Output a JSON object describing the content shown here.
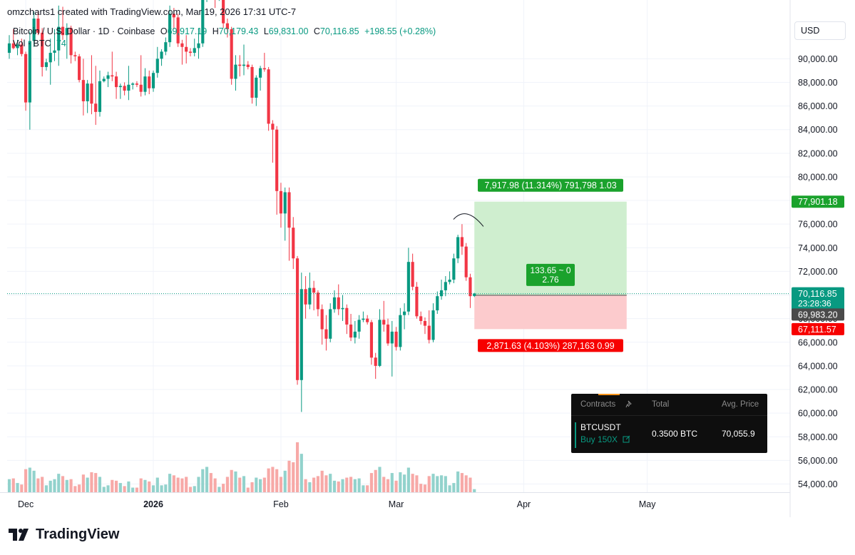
{
  "header": {
    "created_by": "omzcharts1 created with TradingView.com, Mar 19, 2026 17:31 UTC-7"
  },
  "legend": {
    "symbol": "Bitcoin / U.S. Dollar · 1D · Coinbase",
    "o_label": "O",
    "o_value": "69,917.19",
    "h_label": "H",
    "h_value": "70,179.43",
    "l_label": "L",
    "l_value": "69,831.00",
    "c_label": "C",
    "c_value": "70,116.85",
    "change": "+198.55 (+0.28%)",
    "vol_label": "Vol · BTC",
    "vol_value": "74"
  },
  "currency_button": "USD",
  "colors": {
    "up": "#089981",
    "down": "#f23645",
    "vol_up": "#92d2cc",
    "vol_down": "#f7a9a7",
    "profit_zone": "#cfeecf",
    "loss_zone": "#fccbcd",
    "profit_label": "#1aa22c",
    "loss_label": "#f70000",
    "grid": "#f0f3fa"
  },
  "chart_data": {
    "type": "candlestick",
    "title": "Bitcoin / U.S. Dollar · 1D · Coinbase",
    "ylim": [
      53000,
      95000
    ],
    "y_ticks": [
      54000,
      56000,
      58000,
      60000,
      62000,
      64000,
      66000,
      68000,
      70000,
      72000,
      74000,
      76000,
      78000,
      80000,
      82000,
      84000,
      86000,
      88000,
      90000
    ],
    "y_tick_labels": [
      "54,000.00",
      "56,000.00",
      "58,000.00",
      "60,000.00",
      "62,000.00",
      "64,000.00",
      "66,000.00",
      "68,000.00",
      "70,000.00",
      "72,000.00",
      "74,000.00",
      "76,000.00",
      "78,000.00",
      "80,000.00",
      "82,000.00",
      "84,000.00",
      "86,000.00",
      "88,000.00",
      "90,000.00"
    ],
    "x_labels": [
      {
        "label": "Dec",
        "date": "2025-12-01"
      },
      {
        "label": "2026",
        "date": "2026-01-01",
        "bold": true
      },
      {
        "label": "Feb",
        "date": "2026-02-01"
      },
      {
        "label": "Mar",
        "date": "2026-03-01"
      },
      {
        "label": "Apr",
        "date": "2026-04-01"
      },
      {
        "label": "May",
        "date": "2026-05-01"
      }
    ],
    "x_range": [
      "2025-11-27",
      "2026-05-17"
    ],
    "last_price": "70,116.85",
    "countdown": "23:28:36",
    "bid_price": "69,983.20",
    "position": {
      "entry": 69983.2,
      "target": 77901.18,
      "stop": 67111.57,
      "start_date": "2026-03-20",
      "end_date": "2026-04-26",
      "target_label": "77,901.18",
      "stop_label": "67,111.57",
      "profit_text": "7,917.98 (11.314%) 791,798 1.03",
      "loss_text": "2,871.63 (4.103%) 287,163 0.99",
      "center_line1": "133.65 ~ 0",
      "center_line2": "2.76"
    },
    "candles": [
      {
        "d": "2025-11-27",
        "o": 90500,
        "h": 92000,
        "l": 90000,
        "c": 91300,
        "v": 17
      },
      {
        "d": "2025-11-28",
        "o": 91300,
        "h": 92500,
        "l": 90800,
        "c": 90900,
        "v": 18
      },
      {
        "d": "2025-11-29",
        "o": 90900,
        "h": 91600,
        "l": 90300,
        "c": 91200,
        "v": 12
      },
      {
        "d": "2025-11-30",
        "o": 91200,
        "h": 91700,
        "l": 90200,
        "c": 90400,
        "v": 10
      },
      {
        "d": "2025-12-01",
        "o": 90400,
        "h": 90600,
        "l": 85600,
        "c": 86300,
        "v": 30
      },
      {
        "d": "2025-12-02",
        "o": 86300,
        "h": 92300,
        "l": 84000,
        "c": 91500,
        "v": 32
      },
      {
        "d": "2025-12-03",
        "o": 91500,
        "h": 94000,
        "l": 91000,
        "c": 93400,
        "v": 28
      },
      {
        "d": "2025-12-04",
        "o": 93400,
        "h": 94000,
        "l": 92000,
        "c": 92200,
        "v": 18
      },
      {
        "d": "2025-12-05",
        "o": 92200,
        "h": 92600,
        "l": 88500,
        "c": 89300,
        "v": 20
      },
      {
        "d": "2025-12-06",
        "o": 89300,
        "h": 90000,
        "l": 89000,
        "c": 89700,
        "v": 9
      },
      {
        "d": "2025-12-07",
        "o": 89700,
        "h": 91700,
        "l": 87800,
        "c": 90500,
        "v": 15
      },
      {
        "d": "2025-12-08",
        "o": 90500,
        "h": 92500,
        "l": 89800,
        "c": 90700,
        "v": 17
      },
      {
        "d": "2025-12-09",
        "o": 90700,
        "h": 94500,
        "l": 89400,
        "c": 92700,
        "v": 24
      },
      {
        "d": "2025-12-10",
        "o": 92700,
        "h": 94400,
        "l": 91600,
        "c": 92000,
        "v": 21
      },
      {
        "d": "2025-12-11",
        "o": 92000,
        "h": 93000,
        "l": 90000,
        "c": 92600,
        "v": 16
      },
      {
        "d": "2025-12-12",
        "o": 92600,
        "h": 92800,
        "l": 89600,
        "c": 90300,
        "v": 17
      },
      {
        "d": "2025-12-13",
        "o": 90300,
        "h": 90600,
        "l": 89800,
        "c": 90200,
        "v": 8
      },
      {
        "d": "2025-12-14",
        "o": 90200,
        "h": 90400,
        "l": 88000,
        "c": 88200,
        "v": 10
      },
      {
        "d": "2025-12-15",
        "o": 88200,
        "h": 90000,
        "l": 85200,
        "c": 86400,
        "v": 23
      },
      {
        "d": "2025-12-16",
        "o": 86400,
        "h": 88200,
        "l": 85400,
        "c": 87900,
        "v": 19
      },
      {
        "d": "2025-12-17",
        "o": 87900,
        "h": 90300,
        "l": 85300,
        "c": 86200,
        "v": 26
      },
      {
        "d": "2025-12-18",
        "o": 86200,
        "h": 89400,
        "l": 84400,
        "c": 85500,
        "v": 25
      },
      {
        "d": "2025-12-19",
        "o": 85500,
        "h": 89000,
        "l": 85100,
        "c": 88100,
        "v": 20
      },
      {
        "d": "2025-12-20",
        "o": 88100,
        "h": 88500,
        "l": 88000,
        "c": 88300,
        "v": 7
      },
      {
        "d": "2025-12-21",
        "o": 88300,
        "h": 88900,
        "l": 87600,
        "c": 88600,
        "v": 9
      },
      {
        "d": "2025-12-22",
        "o": 88600,
        "h": 90600,
        "l": 88100,
        "c": 88500,
        "v": 16
      },
      {
        "d": "2025-12-23",
        "o": 88500,
        "h": 88900,
        "l": 86600,
        "c": 87600,
        "v": 15
      },
      {
        "d": "2025-12-24",
        "o": 87600,
        "h": 87900,
        "l": 86600,
        "c": 87700,
        "v": 12
      },
      {
        "d": "2025-12-25",
        "o": 87700,
        "h": 88000,
        "l": 86900,
        "c": 87300,
        "v": 8
      },
      {
        "d": "2025-12-26",
        "o": 87300,
        "h": 89400,
        "l": 86500,
        "c": 87800,
        "v": 14
      },
      {
        "d": "2025-12-27",
        "o": 87800,
        "h": 88000,
        "l": 87400,
        "c": 87900,
        "v": 6
      },
      {
        "d": "2025-12-28",
        "o": 87900,
        "h": 88100,
        "l": 87600,
        "c": 87800,
        "v": 6
      },
      {
        "d": "2025-12-29",
        "o": 87800,
        "h": 90300,
        "l": 86800,
        "c": 87200,
        "v": 18
      },
      {
        "d": "2025-12-30",
        "o": 87200,
        "h": 89200,
        "l": 86900,
        "c": 88500,
        "v": 16
      },
      {
        "d": "2025-12-31",
        "o": 88500,
        "h": 89000,
        "l": 87000,
        "c": 87500,
        "v": 14
      },
      {
        "d": "2026-01-01",
        "o": 87500,
        "h": 89000,
        "l": 87200,
        "c": 88800,
        "v": 9
      },
      {
        "d": "2026-01-02",
        "o": 88800,
        "h": 91000,
        "l": 88400,
        "c": 90000,
        "v": 19
      },
      {
        "d": "2026-01-03",
        "o": 90000,
        "h": 90800,
        "l": 89400,
        "c": 90600,
        "v": 9
      },
      {
        "d": "2026-01-04",
        "o": 90600,
        "h": 91800,
        "l": 90300,
        "c": 91400,
        "v": 10
      },
      {
        "d": "2026-01-05",
        "o": 91400,
        "h": 94500,
        "l": 91000,
        "c": 93800,
        "v": 24
      },
      {
        "d": "2026-01-06",
        "o": 93800,
        "h": 94300,
        "l": 92500,
        "c": 93500,
        "v": 22
      },
      {
        "d": "2026-01-07",
        "o": 93500,
        "h": 93800,
        "l": 91000,
        "c": 91300,
        "v": 19
      },
      {
        "d": "2026-01-08",
        "o": 91300,
        "h": 91600,
        "l": 89500,
        "c": 91000,
        "v": 18
      },
      {
        "d": "2026-01-09",
        "o": 91000,
        "h": 92000,
        "l": 89600,
        "c": 90600,
        "v": 20
      },
      {
        "d": "2026-01-10",
        "o": 90600,
        "h": 90900,
        "l": 90200,
        "c": 90500,
        "v": 7
      },
      {
        "d": "2026-01-11",
        "o": 90500,
        "h": 91700,
        "l": 90200,
        "c": 90900,
        "v": 8
      },
      {
        "d": "2026-01-12",
        "o": 90900,
        "h": 92600,
        "l": 90000,
        "c": 91300,
        "v": 20
      },
      {
        "d": "2026-01-13",
        "o": 91300,
        "h": 96400,
        "l": 91000,
        "c": 95500,
        "v": 30
      },
      {
        "d": "2026-01-14",
        "o": 95500,
        "h": 97800,
        "l": 94800,
        "c": 96900,
        "v": 33
      },
      {
        "d": "2026-01-15",
        "o": 96900,
        "h": 97200,
        "l": 95000,
        "c": 95500,
        "v": 25
      },
      {
        "d": "2026-01-16",
        "o": 95500,
        "h": 95800,
        "l": 94300,
        "c": 95100,
        "v": 18
      },
      {
        "d": "2026-01-17",
        "o": 95100,
        "h": 95600,
        "l": 94900,
        "c": 95200,
        "v": 7
      },
      {
        "d": "2026-01-18",
        "o": 95200,
        "h": 95400,
        "l": 92600,
        "c": 93000,
        "v": 11
      },
      {
        "d": "2026-01-19",
        "o": 93000,
        "h": 93400,
        "l": 91800,
        "c": 92500,
        "v": 20
      },
      {
        "d": "2026-01-20",
        "o": 92500,
        "h": 92700,
        "l": 87800,
        "c": 88300,
        "v": 29
      },
      {
        "d": "2026-01-21",
        "o": 88300,
        "h": 90300,
        "l": 87300,
        "c": 89500,
        "v": 27
      },
      {
        "d": "2026-01-22",
        "o": 89500,
        "h": 90300,
        "l": 88500,
        "c": 89400,
        "v": 19
      },
      {
        "d": "2026-01-23",
        "o": 89400,
        "h": 91200,
        "l": 88600,
        "c": 89500,
        "v": 21
      },
      {
        "d": "2026-01-24",
        "o": 89500,
        "h": 89800,
        "l": 89100,
        "c": 89300,
        "v": 6
      },
      {
        "d": "2026-01-25",
        "o": 89300,
        "h": 89500,
        "l": 86200,
        "c": 86700,
        "v": 13
      },
      {
        "d": "2026-01-26",
        "o": 86700,
        "h": 88600,
        "l": 86000,
        "c": 88400,
        "v": 19
      },
      {
        "d": "2026-01-27",
        "o": 88400,
        "h": 89400,
        "l": 87300,
        "c": 89200,
        "v": 17
      },
      {
        "d": "2026-01-28",
        "o": 89200,
        "h": 90500,
        "l": 88900,
        "c": 89100,
        "v": 19
      },
      {
        "d": "2026-01-29",
        "o": 89100,
        "h": 89300,
        "l": 83900,
        "c": 84500,
        "v": 31
      },
      {
        "d": "2026-01-30",
        "o": 84500,
        "h": 84800,
        "l": 81200,
        "c": 84000,
        "v": 33
      },
      {
        "d": "2026-01-31",
        "o": 84000,
        "h": 84300,
        "l": 76800,
        "c": 78800,
        "v": 30
      },
      {
        "d": "2026-02-01",
        "o": 78800,
        "h": 79500,
        "l": 75700,
        "c": 76900,
        "v": 20
      },
      {
        "d": "2026-02-02",
        "o": 76900,
        "h": 79100,
        "l": 74600,
        "c": 78700,
        "v": 28
      },
      {
        "d": "2026-02-03",
        "o": 78700,
        "h": 79100,
        "l": 72900,
        "c": 75700,
        "v": 41
      },
      {
        "d": "2026-02-04",
        "o": 75700,
        "h": 76600,
        "l": 72200,
        "c": 73100,
        "v": 39
      },
      {
        "d": "2026-02-05",
        "o": 73100,
        "h": 73300,
        "l": 62400,
        "c": 62800,
        "v": 65
      },
      {
        "d": "2026-02-06",
        "o": 62800,
        "h": 71900,
        "l": 60100,
        "c": 70500,
        "v": 50
      },
      {
        "d": "2026-02-07",
        "o": 70500,
        "h": 71600,
        "l": 68000,
        "c": 69200,
        "v": 17
      },
      {
        "d": "2026-02-08",
        "o": 69200,
        "h": 71900,
        "l": 68800,
        "c": 70600,
        "v": 13
      },
      {
        "d": "2026-02-09",
        "o": 70600,
        "h": 71200,
        "l": 68700,
        "c": 70200,
        "v": 19
      },
      {
        "d": "2026-02-10",
        "o": 70200,
        "h": 70400,
        "l": 68200,
        "c": 68800,
        "v": 21
      },
      {
        "d": "2026-02-11",
        "o": 68800,
        "h": 69200,
        "l": 65800,
        "c": 67100,
        "v": 28
      },
      {
        "d": "2026-02-12",
        "o": 67100,
        "h": 68300,
        "l": 65300,
        "c": 66300,
        "v": 22
      },
      {
        "d": "2026-02-13",
        "o": 66300,
        "h": 69300,
        "l": 66000,
        "c": 68800,
        "v": 24
      },
      {
        "d": "2026-02-14",
        "o": 68800,
        "h": 70400,
        "l": 68500,
        "c": 69800,
        "v": 15
      },
      {
        "d": "2026-02-15",
        "o": 69800,
        "h": 70900,
        "l": 68300,
        "c": 68800,
        "v": 14
      },
      {
        "d": "2026-02-16",
        "o": 68800,
        "h": 70000,
        "l": 67800,
        "c": 68900,
        "v": 17
      },
      {
        "d": "2026-02-17",
        "o": 68900,
        "h": 69200,
        "l": 66700,
        "c": 67500,
        "v": 19
      },
      {
        "d": "2026-02-18",
        "o": 67500,
        "h": 68400,
        "l": 66100,
        "c": 66400,
        "v": 20
      },
      {
        "d": "2026-02-19",
        "o": 66400,
        "h": 67800,
        "l": 65900,
        "c": 66900,
        "v": 17
      },
      {
        "d": "2026-02-20",
        "o": 66900,
        "h": 68300,
        "l": 66300,
        "c": 67900,
        "v": 18
      },
      {
        "d": "2026-02-21",
        "o": 67900,
        "h": 68600,
        "l": 67700,
        "c": 68000,
        "v": 9
      },
      {
        "d": "2026-02-22",
        "o": 68000,
        "h": 68300,
        "l": 67500,
        "c": 67700,
        "v": 9
      },
      {
        "d": "2026-02-23",
        "o": 67700,
        "h": 67900,
        "l": 64100,
        "c": 64700,
        "v": 25
      },
      {
        "d": "2026-02-24",
        "o": 64700,
        "h": 65100,
        "l": 62900,
        "c": 64000,
        "v": 29
      },
      {
        "d": "2026-02-25",
        "o": 64000,
        "h": 68800,
        "l": 63900,
        "c": 67900,
        "v": 33
      },
      {
        "d": "2026-02-26",
        "o": 67900,
        "h": 69500,
        "l": 66900,
        "c": 67500,
        "v": 20
      },
      {
        "d": "2026-02-27",
        "o": 67500,
        "h": 68000,
        "l": 65700,
        "c": 65900,
        "v": 17
      },
      {
        "d": "2026-02-28",
        "o": 65900,
        "h": 67800,
        "l": 63100,
        "c": 66900,
        "v": 25
      },
      {
        "d": "2026-03-01",
        "o": 66900,
        "h": 67300,
        "l": 65300,
        "c": 65600,
        "v": 15
      },
      {
        "d": "2026-03-02",
        "o": 65600,
        "h": 68900,
        "l": 65300,
        "c": 68300,
        "v": 26
      },
      {
        "d": "2026-03-03",
        "o": 68300,
        "h": 69300,
        "l": 67100,
        "c": 68600,
        "v": 23
      },
      {
        "d": "2026-03-04",
        "o": 68600,
        "h": 74000,
        "l": 68300,
        "c": 72800,
        "v": 32
      },
      {
        "d": "2026-03-05",
        "o": 72800,
        "h": 73500,
        "l": 70400,
        "c": 70700,
        "v": 24
      },
      {
        "d": "2026-03-06",
        "o": 70700,
        "h": 71100,
        "l": 68000,
        "c": 68200,
        "v": 22
      },
      {
        "d": "2026-03-07",
        "o": 68200,
        "h": 68600,
        "l": 67500,
        "c": 67800,
        "v": 11
      },
      {
        "d": "2026-03-08",
        "o": 67800,
        "h": 68100,
        "l": 66700,
        "c": 67400,
        "v": 10
      },
      {
        "d": "2026-03-09",
        "o": 67400,
        "h": 68700,
        "l": 65900,
        "c": 66200,
        "v": 21
      },
      {
        "d": "2026-03-10",
        "o": 66200,
        "h": 69300,
        "l": 66000,
        "c": 68700,
        "v": 24
      },
      {
        "d": "2026-03-11",
        "o": 68700,
        "h": 70300,
        "l": 68400,
        "c": 69900,
        "v": 21
      },
      {
        "d": "2026-03-12",
        "o": 69900,
        "h": 71300,
        "l": 69600,
        "c": 70400,
        "v": 22
      },
      {
        "d": "2026-03-13",
        "o": 70400,
        "h": 71600,
        "l": 69900,
        "c": 71100,
        "v": 21
      },
      {
        "d": "2026-03-14",
        "o": 71100,
        "h": 72000,
        "l": 70900,
        "c": 71300,
        "v": 9
      },
      {
        "d": "2026-03-15",
        "o": 71300,
        "h": 73500,
        "l": 71000,
        "c": 73100,
        "v": 12
      },
      {
        "d": "2026-03-16",
        "o": 73100,
        "h": 75100,
        "l": 72700,
        "c": 74900,
        "v": 27
      },
      {
        "d": "2026-03-17",
        "o": 74900,
        "h": 76000,
        "l": 73400,
        "c": 74100,
        "v": 25
      },
      {
        "d": "2026-03-18",
        "o": 74100,
        "h": 74400,
        "l": 71200,
        "c": 71500,
        "v": 22
      },
      {
        "d": "2026-03-19",
        "o": 71500,
        "h": 71800,
        "l": 68900,
        "c": 69900,
        "v": 19
      },
      {
        "d": "2026-03-20",
        "o": 69917.19,
        "h": 70179.43,
        "l": 69831,
        "c": 70116.85,
        "v": 4
      }
    ]
  },
  "positions_panel": {
    "col_contracts": "Contracts",
    "col_total": "Total",
    "col_avg_price": "Avg. Price",
    "pin_icon": "pin-icon",
    "symbol": "BTCUSDT",
    "side": "Buy 150X",
    "edit_icon": "edit-icon",
    "total": "0.3500 BTC",
    "avg_price": "70,055.9"
  },
  "logo": {
    "text": "TradingView",
    "icon": "tradingview-logo-icon"
  }
}
